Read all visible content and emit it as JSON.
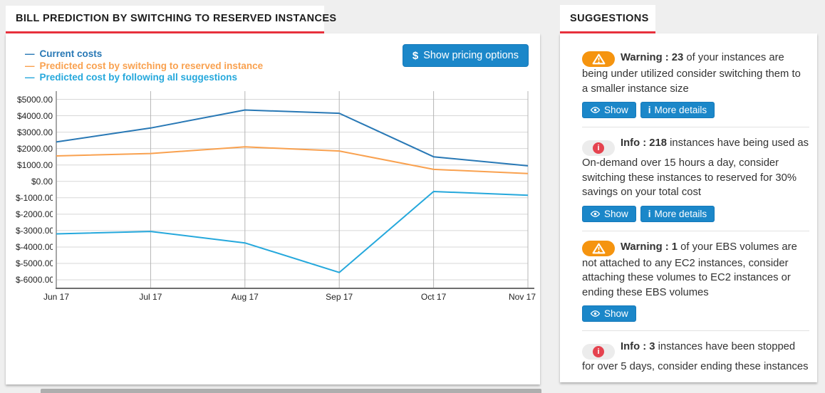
{
  "tabs": {
    "bill": "BILL PREDICTION BY SWITCHING TO RESERVED INSTANCES",
    "suggestions": "SUGGESTIONS"
  },
  "bill_panel": {
    "pricing_button": {
      "icon_glyph": "$",
      "label": "Show pricing options"
    }
  },
  "chart_data": {
    "type": "line",
    "x": [
      "Jun 17",
      "Jul 17",
      "Aug 17",
      "Sep 17",
      "Oct 17",
      "Nov 17"
    ],
    "series": [
      {
        "name": "Current costs",
        "color": "#2878b5",
        "values": [
          2400,
          3250,
          4350,
          4150,
          1500,
          950
        ]
      },
      {
        "name": "Predicted cost by switching to reserved instance",
        "color": "#f9a14f",
        "values": [
          1550,
          1700,
          2100,
          1850,
          730,
          480
        ]
      },
      {
        "name": "Predicted cost by following all suggestions",
        "color": "#25a8dc",
        "values": [
          -3200,
          -3050,
          -3750,
          -5550,
          -620,
          -850
        ]
      }
    ],
    "ylim": [
      -6000,
      5000
    ],
    "ytick_step": 1000,
    "yticks": [
      "$5000.00",
      "$4000.00",
      "$3000.00",
      "$2000.00",
      "$1000.00",
      "$0.00",
      "$-1000.00",
      "$-2000.00",
      "$-3000.00",
      "$-4000.00",
      "$-5000.00",
      "$-6000.00"
    ],
    "grid": true,
    "legend_position": "top-left",
    "legend_marker": "—"
  },
  "suggestions": {
    "show_label": "Show",
    "more_label": "More details",
    "more_icon_glyph": "i",
    "info_glyph": "i",
    "cards": [
      {
        "severity": "warning",
        "title": "Warning : 23",
        "text": "of your instances are being under utilized consider switching them to a smaller instance size",
        "show": true,
        "more": true
      },
      {
        "severity": "info",
        "title": "Info : 218",
        "text": "instances have being used as On-demand over 15 hours a day, consider switching these instances to reserved for 30% savings on your total cost",
        "show": true,
        "more": true
      },
      {
        "severity": "warning",
        "title": "Warning : 1",
        "text": "of your EBS volumes are not attached to any EC2 instances, consider attaching these volumes to EC2 instances or ending these EBS volumes",
        "show": true,
        "more": false
      },
      {
        "severity": "info",
        "title": "Info : 3",
        "text": "instances have been stopped for over 5 days, consider ending these instances",
        "show": false,
        "more": false
      }
    ]
  },
  "colors": {
    "accent_red": "#e8313d",
    "button_blue": "#1b87c9",
    "warning_orange": "#f5940f",
    "info_red": "#e5434f",
    "background": "#efefef"
  }
}
